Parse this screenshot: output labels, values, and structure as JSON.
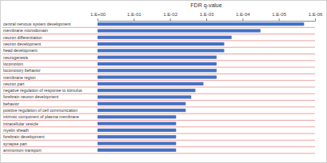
{
  "chart_data": {
    "type": "bar",
    "orientation": "horizontal",
    "log": "x",
    "x_label": "FDR q-value",
    "color": "#4472c4",
    "categories": [
      "central nervous system development",
      "membrane microdomain",
      "neuron differentiation",
      "neuron development",
      "head development",
      "neurogenesis",
      "locomotion",
      "locomotory behavior",
      "membrane region",
      "neuron part",
      "negative regulation of response to stimulus",
      "forebrain neuron development",
      "behavior",
      "positive regulation of cell communication",
      "intrinsic component of plasma membrane",
      "intracellular vesicle",
      "myelin sheath",
      "forebrain development",
      "synapse part",
      "ammonium transport"
    ],
    "values": [
      2e-06,
      3.2e-05,
      0.0002,
      0.00032,
      0.00032,
      0.00052,
      0.00052,
      0.00052,
      0.00052,
      0.0012,
      0.002,
      0.0026,
      0.0037,
      0.0037,
      0.0068,
      0.0068,
      0.0068,
      0.0068,
      0.0068,
      0.0068
    ],
    "xlim": [
      1,
      1e-06
    ],
    "xticks": [
      {
        "value": 1,
        "label": "1.E+00"
      },
      {
        "value": 0.1,
        "label": "1.E-01"
      },
      {
        "value": 0.01,
        "label": "1.E-02"
      },
      {
        "value": 0.001,
        "label": "1.E-03"
      },
      {
        "value": 0.0001,
        "label": "1.E-04"
      },
      {
        "value": 1e-05,
        "label": "1.E-05"
      },
      {
        "value": 1e-06,
        "label": "1.E-06"
      }
    ]
  }
}
